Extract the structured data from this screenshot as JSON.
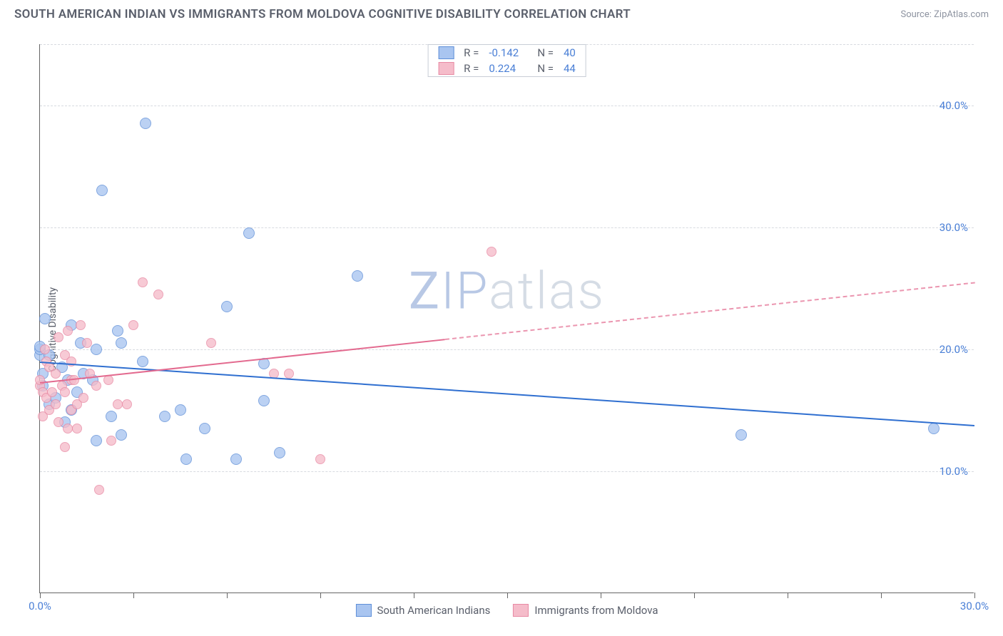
{
  "header": {
    "title": "SOUTH AMERICAN INDIAN VS IMMIGRANTS FROM MOLDOVA COGNITIVE DISABILITY CORRELATION CHART",
    "source_prefix": "Source: ",
    "source_name": "ZipAtlas.com"
  },
  "ylabel": "Cognitive Disability",
  "watermark": {
    "part1": "ZIP",
    "part2": "atlas"
  },
  "chart": {
    "type": "scatter",
    "xlim": [
      0,
      30
    ],
    "ylim": [
      0,
      45
    ],
    "x_ticks": [
      0,
      3,
      6,
      9,
      12,
      15,
      18,
      21,
      24,
      27,
      30
    ],
    "x_tick_labels": {
      "0": "0.0%",
      "30": "30.0%"
    },
    "y_gridlines": [
      10,
      20,
      30,
      40,
      45
    ],
    "y_tick_labels": {
      "10": "10.0%",
      "20": "20.0%",
      "30": "30.0%",
      "40": "40.0%"
    },
    "grid_color": "#d7dae0",
    "background_color": "#ffffff",
    "axis_color": "#666666",
    "series": [
      {
        "name": "South American Indians",
        "label": "South American Indians",
        "R": "-0.142",
        "N": "40",
        "fill": "#a9c5f0",
        "stroke": "#5f8fd8",
        "line_color": "#2f6fd0",
        "marker_r": 8,
        "regression": {
          "x1": 0,
          "y1": 19.0,
          "x2": 30,
          "y2": 13.8,
          "solid_until_x": 30
        },
        "points": [
          [
            0.0,
            19.5
          ],
          [
            0.0,
            20.0
          ],
          [
            0.1,
            18.0
          ],
          [
            0.1,
            17.0
          ],
          [
            0.15,
            22.5
          ],
          [
            0.3,
            19.5
          ],
          [
            0.3,
            15.5
          ],
          [
            0.5,
            16.0
          ],
          [
            0.7,
            18.5
          ],
          [
            0.8,
            14.0
          ],
          [
            0.9,
            17.5
          ],
          [
            1.0,
            15.0
          ],
          [
            1.0,
            22.0
          ],
          [
            1.2,
            16.5
          ],
          [
            1.3,
            20.5
          ],
          [
            1.4,
            18.0
          ],
          [
            1.7,
            17.5
          ],
          [
            1.8,
            20.0
          ],
          [
            1.8,
            12.5
          ],
          [
            2.0,
            33.0
          ],
          [
            2.3,
            14.5
          ],
          [
            2.5,
            21.5
          ],
          [
            2.6,
            20.5
          ],
          [
            2.6,
            13.0
          ],
          [
            3.4,
            38.5
          ],
          [
            3.3,
            19.0
          ],
          [
            4.0,
            14.5
          ],
          [
            4.5,
            15.0
          ],
          [
            4.7,
            11.0
          ],
          [
            5.3,
            13.5
          ],
          [
            6.0,
            23.5
          ],
          [
            6.3,
            11.0
          ],
          [
            6.7,
            29.5
          ],
          [
            7.2,
            15.8
          ],
          [
            7.2,
            18.8
          ],
          [
            7.7,
            11.5
          ],
          [
            10.2,
            26.0
          ],
          [
            22.5,
            13.0
          ],
          [
            28.7,
            13.5
          ],
          [
            0.0,
            20.2
          ]
        ]
      },
      {
        "name": "Immigrants from Moldova",
        "label": "Immigrants from Moldova",
        "R": "0.224",
        "N": "44",
        "fill": "#f5bcca",
        "stroke": "#e88aa4",
        "line_color": "#e36a8f",
        "marker_r": 7,
        "regression": {
          "x1": 0,
          "y1": 17.3,
          "x2": 30,
          "y2": 25.5,
          "solid_until_x": 13
        },
        "points": [
          [
            0.0,
            17.0
          ],
          [
            0.0,
            17.5
          ],
          [
            0.1,
            16.5
          ],
          [
            0.1,
            14.5
          ],
          [
            0.15,
            20.0
          ],
          [
            0.2,
            19.0
          ],
          [
            0.2,
            16.0
          ],
          [
            0.3,
            15.0
          ],
          [
            0.3,
            18.5
          ],
          [
            0.4,
            16.5
          ],
          [
            0.5,
            18.0
          ],
          [
            0.5,
            15.5
          ],
          [
            0.6,
            14.0
          ],
          [
            0.6,
            21.0
          ],
          [
            0.7,
            17.0
          ],
          [
            0.8,
            16.5
          ],
          [
            0.8,
            12.0
          ],
          [
            0.8,
            19.5
          ],
          [
            0.9,
            13.5
          ],
          [
            0.9,
            21.5
          ],
          [
            1.0,
            15.0
          ],
          [
            1.0,
            19.0
          ],
          [
            1.0,
            17.5
          ],
          [
            1.1,
            17.5
          ],
          [
            1.2,
            13.5
          ],
          [
            1.2,
            15.5
          ],
          [
            1.3,
            22.0
          ],
          [
            1.4,
            16.0
          ],
          [
            1.5,
            20.5
          ],
          [
            1.8,
            17.0
          ],
          [
            1.9,
            8.5
          ],
          [
            2.2,
            17.5
          ],
          [
            2.3,
            12.5
          ],
          [
            2.5,
            15.5
          ],
          [
            2.8,
            15.5
          ],
          [
            3.0,
            22.0
          ],
          [
            3.3,
            25.5
          ],
          [
            3.8,
            24.5
          ],
          [
            5.5,
            20.5
          ],
          [
            7.5,
            18.0
          ],
          [
            8.0,
            18.0
          ],
          [
            9.0,
            11.0
          ],
          [
            14.5,
            28.0
          ],
          [
            1.6,
            18.0
          ]
        ]
      }
    ]
  },
  "legend_bottom": [
    {
      "swatch_fill": "#a9c5f0",
      "swatch_stroke": "#5f8fd8",
      "label": "South American Indians"
    },
    {
      "swatch_fill": "#f5bcca",
      "swatch_stroke": "#e88aa4",
      "label": "Immigrants from Moldova"
    }
  ]
}
